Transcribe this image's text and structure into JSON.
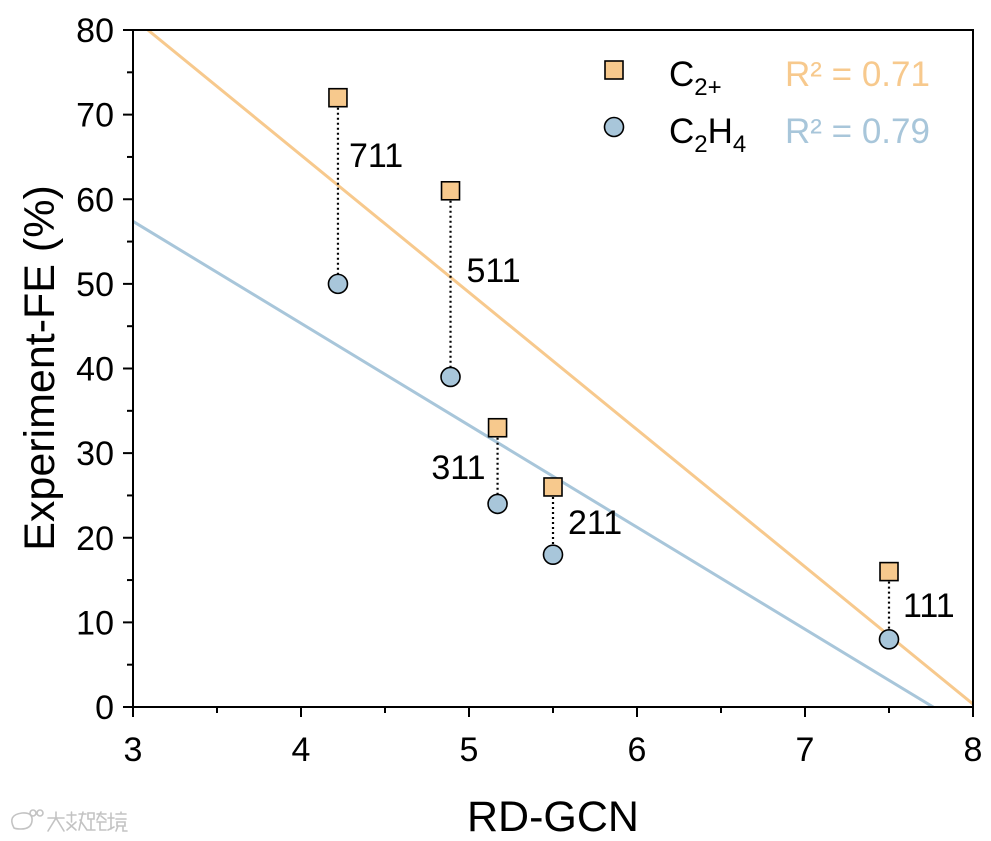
{
  "chart_data": {
    "type": "scatter",
    "title": "",
    "xlabel": "RD-GCN",
    "ylabel": "Experiment-FE (%)",
    "xlim": [
      3,
      8
    ],
    "ylim": [
      0,
      80
    ],
    "xticks": [
      3,
      4,
      5,
      6,
      7,
      8
    ],
    "yticks": [
      0,
      10,
      20,
      30,
      40,
      50,
      60,
      70,
      80
    ],
    "grid": false,
    "legend": "top-right",
    "categories": [
      "711",
      "511",
      "311",
      "211",
      "111"
    ],
    "x": [
      4.22,
      4.89,
      5.17,
      5.5,
      7.5
    ],
    "series": [
      {
        "name": "C2+",
        "marker": "square",
        "color": "#F7C98D",
        "values": [
          72,
          61,
          33,
          26,
          16
        ],
        "fit": {
          "slope": -16.22,
          "intercept": 130.1
        },
        "r2_text": "R² = 0.71"
      },
      {
        "name": "C2H4",
        "marker": "circle",
        "color": "#A8C6DA",
        "values": [
          50,
          39,
          24,
          18,
          8
        ],
        "fit": {
          "slope": -12.05,
          "intercept": 93.54
        },
        "r2_text": "R² = 0.79"
      }
    ]
  },
  "watermark": {
    "text": "大数跨境"
  }
}
